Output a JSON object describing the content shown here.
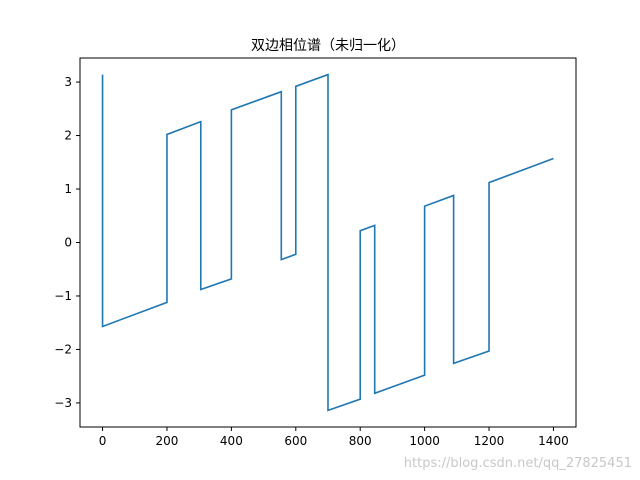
{
  "chart_data": {
    "type": "line",
    "title": "双边相位谱（未归一化）",
    "xlabel": "",
    "ylabel": "",
    "xlim": [
      -70,
      1470
    ],
    "ylim": [
      -3.45,
      3.45
    ],
    "xticks": [
      0,
      200,
      400,
      600,
      800,
      1000,
      1200,
      1400
    ],
    "yticks": [
      3,
      2,
      1,
      0,
      -1,
      -2,
      -3
    ],
    "ytick_labels": [
      "3",
      "2",
      "1",
      "0",
      "−1",
      "−2",
      "−3"
    ],
    "grid": false,
    "legend": "none",
    "series": [
      {
        "color": "#1f77b4",
        "x": [
          0,
          0,
          200,
          200,
          305,
          305,
          400,
          400,
          555,
          555,
          600,
          600,
          700,
          700,
          800,
          800,
          845,
          845,
          1000,
          1000,
          1090,
          1090,
          1200,
          1200,
          1400
        ],
        "y": [
          3.14,
          -1.57,
          -1.12,
          2.02,
          2.26,
          -0.88,
          -0.68,
          2.48,
          2.82,
          -0.32,
          -0.22,
          2.92,
          3.14,
          -3.14,
          -2.93,
          0.22,
          0.32,
          -2.82,
          -2.48,
          0.68,
          0.88,
          -2.26,
          -2.03,
          1.12,
          1.57
        ]
      }
    ]
  },
  "watermark": "https://blog.csdn.net/qq_27825451"
}
